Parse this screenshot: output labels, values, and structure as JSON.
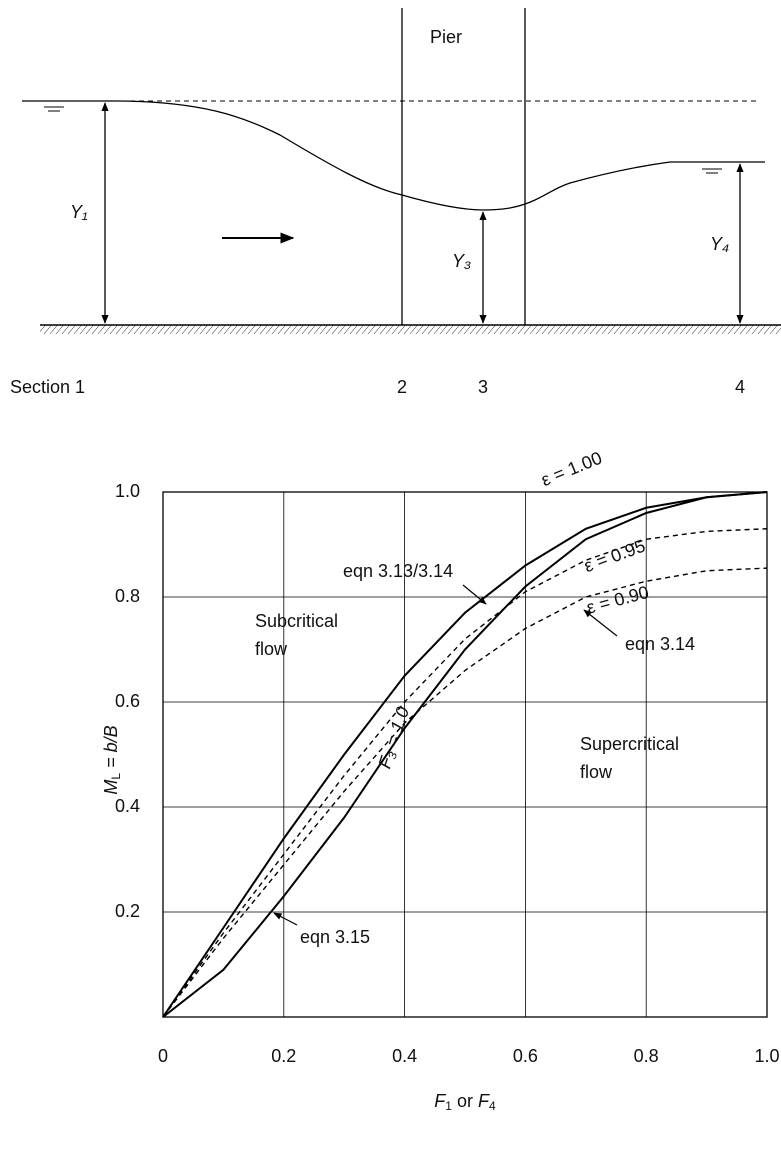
{
  "diagram": {
    "pier": "Pier",
    "y1": "Y₁",
    "y3": "Y₃",
    "y4": "Y₄",
    "sections": [
      "Section 1",
      "2",
      "3",
      "4"
    ]
  },
  "chart_data": {
    "type": "line",
    "x": [
      0,
      0.1,
      0.2,
      0.3,
      0.4,
      0.5,
      0.6,
      0.7,
      0.8,
      0.9,
      1.0
    ],
    "series": [
      {
        "name": "ε = 1.00",
        "color": "#000000",
        "dash": false,
        "values": [
          0,
          0.17,
          0.34,
          0.5,
          0.65,
          0.77,
          0.86,
          0.93,
          0.97,
          0.99,
          1.0
        ]
      },
      {
        "name": "ε = 0.95",
        "color": "#000000",
        "dash": true,
        "values": [
          0,
          0.16,
          0.31,
          0.46,
          0.6,
          0.72,
          0.81,
          0.87,
          0.91,
          0.925,
          0.93
        ]
      },
      {
        "name": "ε = 0.90",
        "color": "#000000",
        "dash": true,
        "values": [
          0,
          0.15,
          0.29,
          0.43,
          0.56,
          0.66,
          0.74,
          0.8,
          0.83,
          0.85,
          0.855
        ]
      },
      {
        "color": "#000000",
        "dash": false,
        "values": [
          0,
          0.09,
          0.23,
          0.38,
          0.55,
          0.7,
          0.82,
          0.91,
          0.96,
          0.99,
          1.0
        ]
      }
    ],
    "xlim": [
      0,
      1
    ],
    "ylim": [
      0,
      1
    ],
    "xticks": [
      0,
      0.2,
      0.4,
      0.6,
      0.8,
      {
        "value": 1,
        "label": "1.0"
      }
    ],
    "yticks": [
      0.2,
      0.4,
      0.6,
      0.8,
      {
        "value": 1,
        "label": "1.0"
      }
    ],
    "grid": true,
    "xlabel": [
      "F",
      "1",
      " or ",
      "F",
      "4"
    ],
    "ylabel": [
      "M",
      "L",
      " = b/B"
    ],
    "annotations": [
      "eqn 3.13/3.14",
      "eqn 3.14",
      "eqn 3.15",
      "F₃ = 1.0"
    ],
    "regions": [
      [
        "Subcritical",
        "flow"
      ],
      [
        "Supercritical",
        "flow"
      ]
    ]
  }
}
